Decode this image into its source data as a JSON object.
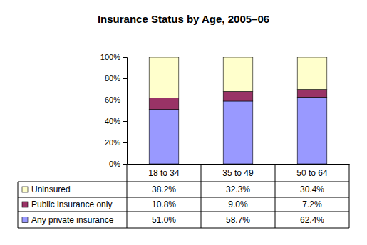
{
  "chart_data": {
    "type": "bar",
    "title": "Insurance Status by Age, 2005–06",
    "categories": [
      "18 to 34",
      "35 to 49",
      "50 to 64"
    ],
    "series": [
      {
        "name": "Uninsured",
        "color": "#ffffcc",
        "values": [
          38.2,
          32.3,
          30.4
        ],
        "value_labels": [
          "38.2%",
          "32.3%",
          "30.4%"
        ]
      },
      {
        "name": "Public insurance only",
        "color": "#993366",
        "values": [
          10.8,
          9.0,
          7.2
        ],
        "value_labels": [
          "10.8%",
          "9.0%",
          "7.2%"
        ]
      },
      {
        "name": "Any private insurance",
        "color": "#9999ff",
        "values": [
          51.0,
          58.7,
          62.4
        ],
        "value_labels": [
          "51.0%",
          "58.7%",
          "62.4%"
        ]
      }
    ],
    "stacked": true,
    "ylim": [
      0,
      100
    ],
    "yticks": [
      {
        "value": 0,
        "label": "0%"
      },
      {
        "value": 20,
        "label": "20%"
      },
      {
        "value": 40,
        "label": "40%"
      },
      {
        "value": 60,
        "label": "60%"
      },
      {
        "value": 80,
        "label": "80%"
      },
      {
        "value": 100,
        "label": "100%"
      }
    ]
  }
}
